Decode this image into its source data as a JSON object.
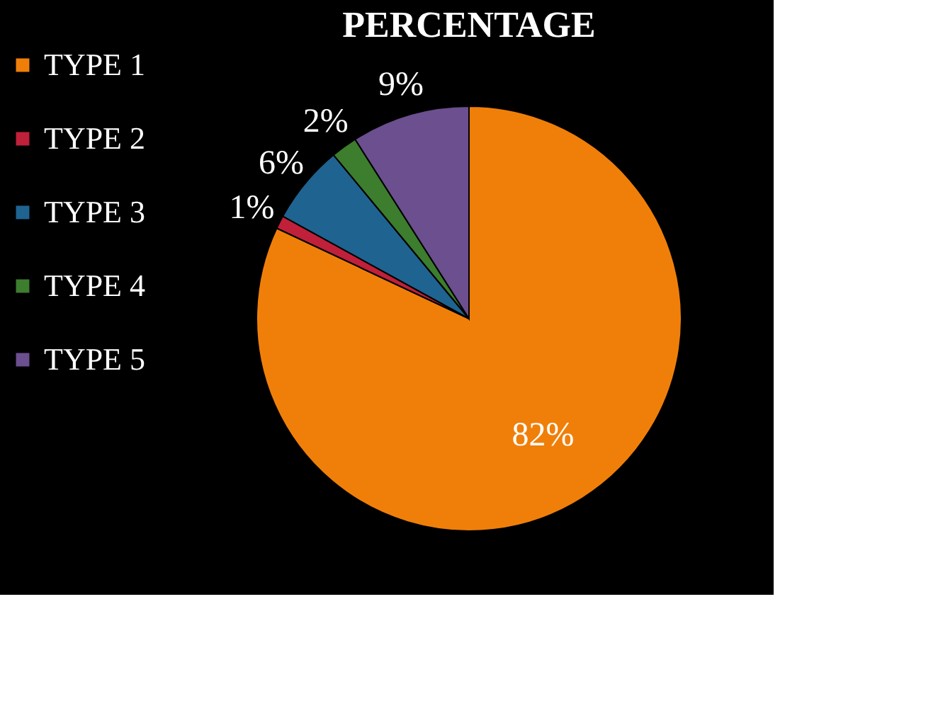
{
  "chart_data": {
    "type": "pie",
    "title": "PERCENTAGE",
    "categories": [
      "TYPE 1",
      "TYPE 2",
      "TYPE 3",
      "TYPE 4",
      "TYPE 5"
    ],
    "values": [
      82,
      1,
      6,
      2,
      9
    ],
    "colors": [
      "#f07f09",
      "#c0203a",
      "#1f6391",
      "#3d7d2e",
      "#6b4f8f"
    ],
    "value_labels": [
      "82%",
      "1%",
      "6%",
      "2%",
      "9%"
    ],
    "legend": "left"
  }
}
